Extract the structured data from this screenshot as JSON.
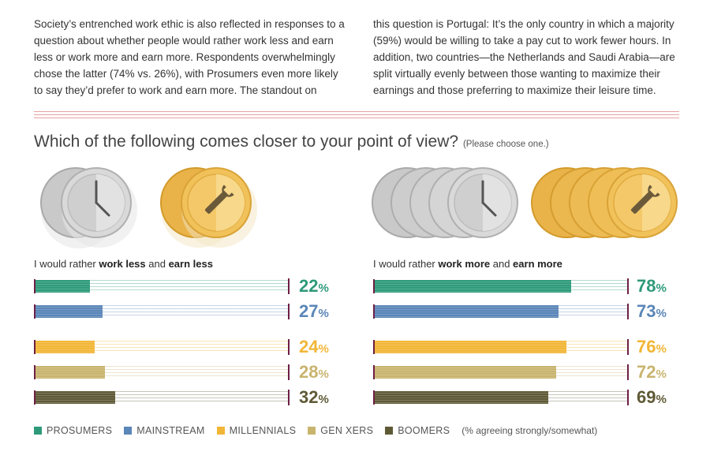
{
  "intro": {
    "left": "Society’s entrenched work ethic is also reflected in responses to a question about whether people would rather work less and earn less or work more and earn more. Respondents overwhelmingly chose the latter (74% vs. 26%), with Prosumers even more likely to say they’d prefer to work and earn more. The standout on",
    "right": "this question is Portugal: It’s the only country in which a majority (59%) would be willing to take a pay cut to work fewer hours. In addition, two countries—the Netherlands and Saudi Arabia—are split virtually evenly between those wanting to maximize their earnings and those preferring to maximize their leisure time."
  },
  "question": {
    "title": "Which of the following comes closer to your point of view?",
    "note": "(Please choose one.)"
  },
  "legend": {
    "note": "(% agreeing strongly/somewhat)"
  },
  "colors": {
    "PROSUMERS": "#2e9a7a",
    "MAINSTREAM": "#5a86b8",
    "MILLENNIALS": "#f2b636",
    "GEN XERS": "#c9b46e",
    "BOOMERS": "#5f5a36",
    "rule": "#e8a2a2",
    "cap": "#6d1f45"
  },
  "icons": {
    "silver_coin": "clock-icon",
    "gold_coin": "wrench-icon"
  },
  "chart_data": [
    {
      "type": "bar",
      "orientation": "horizontal",
      "title_parts": [
        "I would rather ",
        "work less",
        " and ",
        "earn less"
      ],
      "categories": [
        "PROSUMERS",
        "MAINSTREAM",
        "MILLENNIALS",
        "GEN XERS",
        "BOOMERS"
      ],
      "values": [
        22,
        27,
        24,
        28,
        32
      ],
      "unit": "%",
      "xlim": [
        0,
        100
      ]
    },
    {
      "type": "bar",
      "orientation": "horizontal",
      "title_parts": [
        "I would rather ",
        "work more",
        " and ",
        "earn more"
      ],
      "categories": [
        "PROSUMERS",
        "MAINSTREAM",
        "MILLENNIALS",
        "GEN XERS",
        "BOOMERS"
      ],
      "values": [
        78,
        73,
        76,
        72,
        69
      ],
      "unit": "%",
      "xlim": [
        0,
        100
      ]
    }
  ]
}
